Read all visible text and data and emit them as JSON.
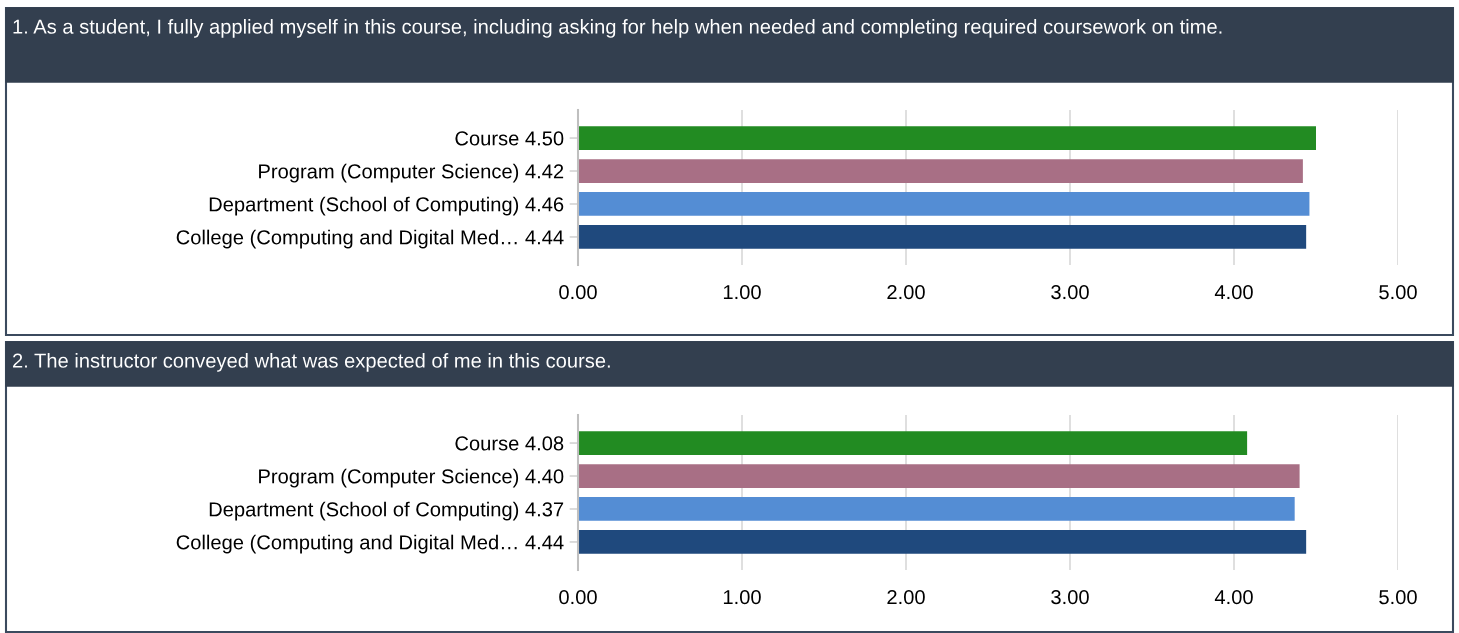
{
  "chart_data": [
    {
      "type": "bar",
      "orientation": "horizontal",
      "title": "1. As a student, I fully applied myself in this course, including asking for help when needed and completing required coursework on time.",
      "categories": [
        "Course 4.50",
        "Program (Computer Science) 4.42",
        "Department (School of Computing) 4.46",
        "College (Computing and Digital Med… 4.44"
      ],
      "values": [
        4.5,
        4.42,
        4.46,
        4.44
      ],
      "colors": [
        "#228b22",
        "#a86f85",
        "#548dd4",
        "#1f497d"
      ],
      "xlim": [
        0,
        5
      ],
      "xticks": [
        {
          "value": 0,
          "label": "0.00"
        },
        {
          "value": 1,
          "label": "1.00"
        },
        {
          "value": 2,
          "label": "2.00"
        },
        {
          "value": 3,
          "label": "3.00"
        },
        {
          "value": 4,
          "label": "4.00"
        },
        {
          "value": 5,
          "label": "5.00"
        }
      ],
      "grid": "x"
    },
    {
      "type": "bar",
      "orientation": "horizontal",
      "title": "2. The instructor conveyed what was expected of me in this course.",
      "categories": [
        "Course 4.08",
        "Program (Computer Science) 4.40",
        "Department (School of Computing) 4.37",
        "College (Computing and Digital Med… 4.44"
      ],
      "values": [
        4.08,
        4.4,
        4.37,
        4.44
      ],
      "colors": [
        "#228b22",
        "#a86f85",
        "#548dd4",
        "#1f497d"
      ],
      "xlim": [
        0,
        5
      ],
      "xticks": [
        {
          "value": 0,
          "label": "0.00"
        },
        {
          "value": 1,
          "label": "1.00"
        },
        {
          "value": 2,
          "label": "2.00"
        },
        {
          "value": 3,
          "label": "3.00"
        },
        {
          "value": 4,
          "label": "4.00"
        },
        {
          "value": 5,
          "label": "5.00"
        }
      ],
      "grid": "x"
    }
  ]
}
